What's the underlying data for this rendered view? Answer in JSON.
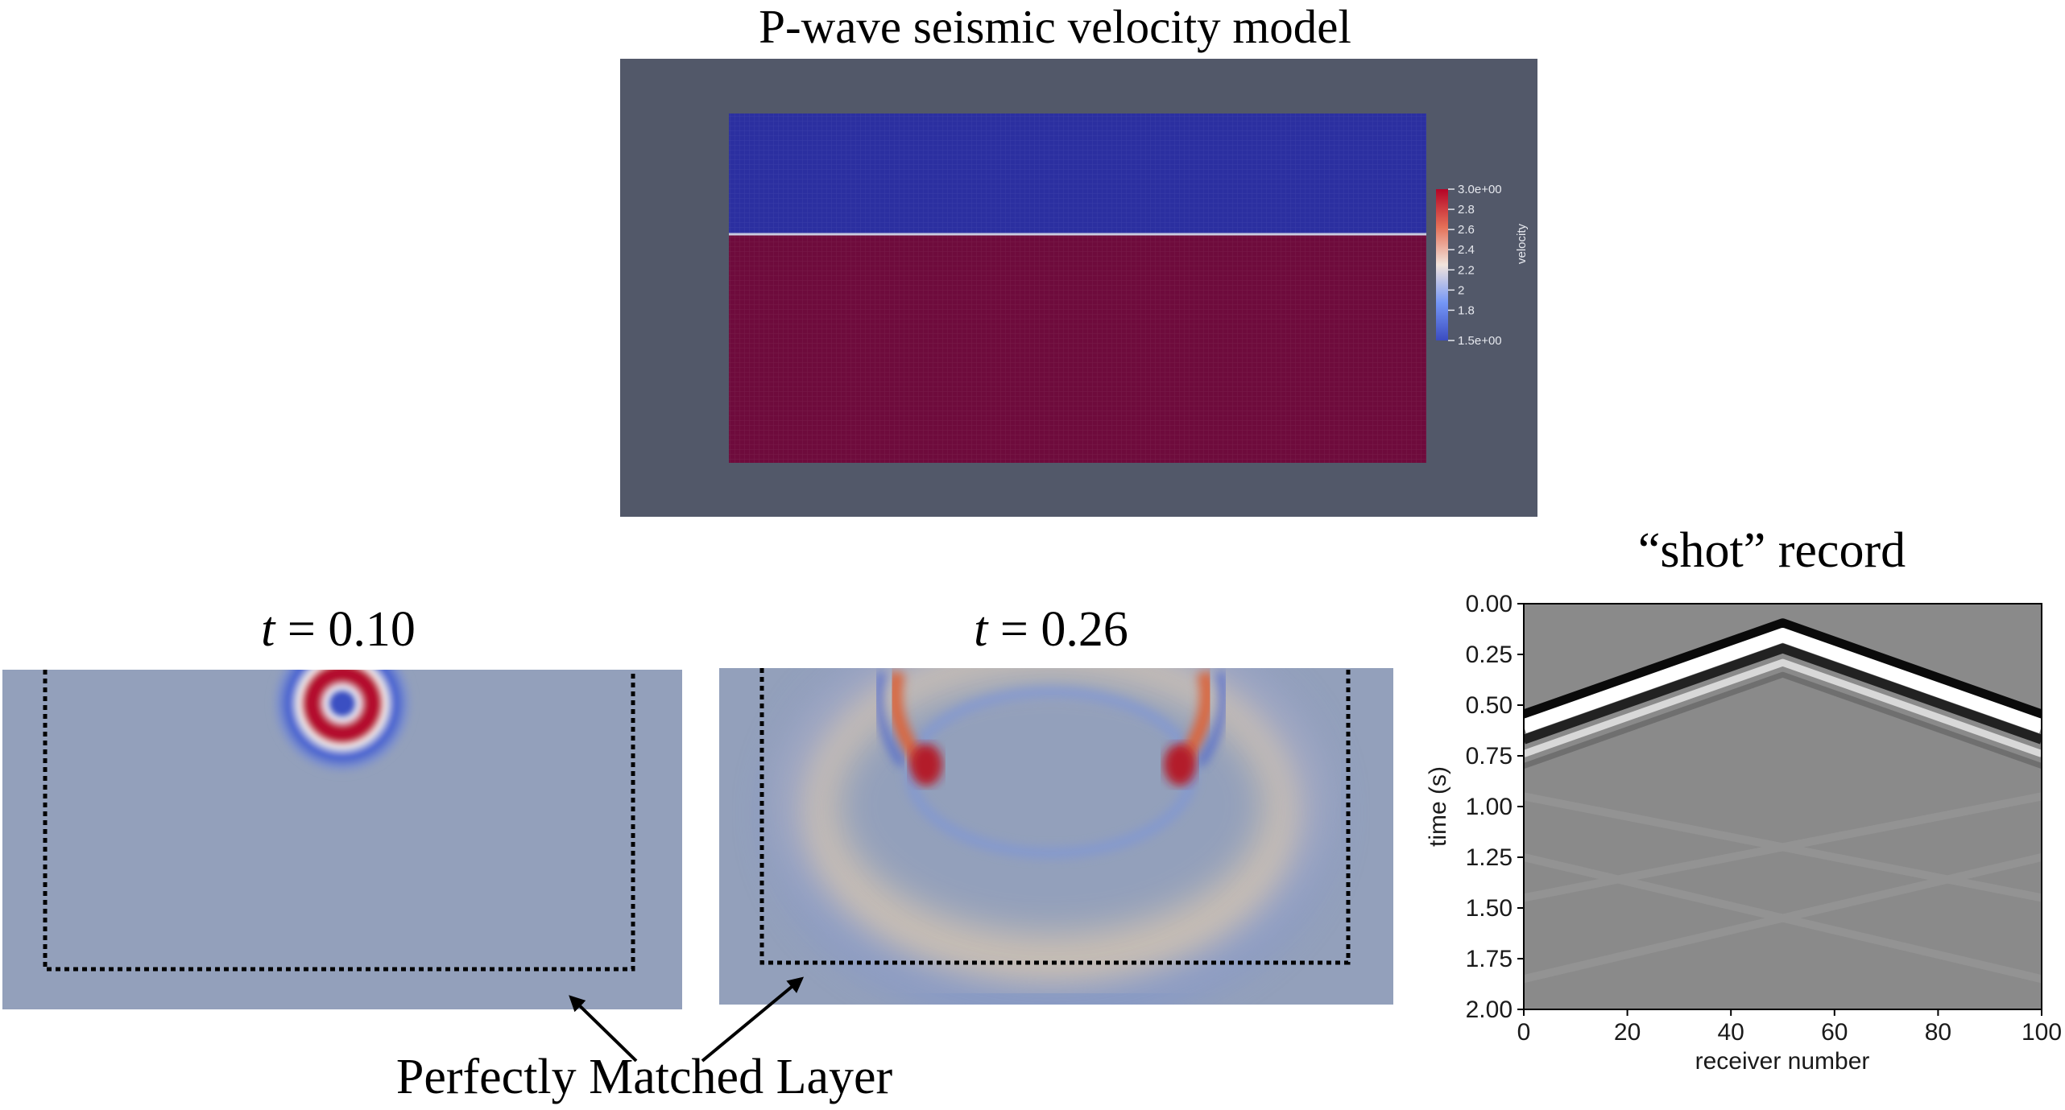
{
  "velocity_model": {
    "title": "P-wave seismic velocity model",
    "colorbar": {
      "label": "velocity",
      "ticks": [
        "3.0e+00",
        "2.8",
        "2.6",
        "2.4",
        "2.2",
        "2",
        "1.8",
        "1.5e+00"
      ],
      "min": 1.5,
      "max": 3.0
    },
    "colors": {
      "background": "#525869",
      "upper_layer": "#2b2fa0",
      "lower_layer": "#6e0b3c"
    }
  },
  "snapshots": [
    {
      "t_var": "t",
      "t_eq": "= 0.10"
    },
    {
      "t_var": "t",
      "t_eq": "= 0.26"
    }
  ],
  "pml_label": "Perfectly Matched Layer",
  "chart_data": {
    "type": "heatmap",
    "title": "“shot” record",
    "xlabel": "receiver number",
    "ylabel": "time (s)",
    "xlim": [
      0,
      100
    ],
    "ylim": [
      2.0,
      0.0
    ],
    "x_ticks": [
      "0",
      "20",
      "40",
      "60",
      "80",
      "100"
    ],
    "y_ticks": [
      "0.00",
      "0.25",
      "0.50",
      "0.75",
      "1.00",
      "1.25",
      "1.50",
      "1.75",
      "2.00"
    ],
    "events": [
      {
        "name": "",
        "x": [
          0,
          50,
          100
        ],
        "t": [
          0.55,
          0.1,
          0.55
        ]
      }
    ]
  }
}
